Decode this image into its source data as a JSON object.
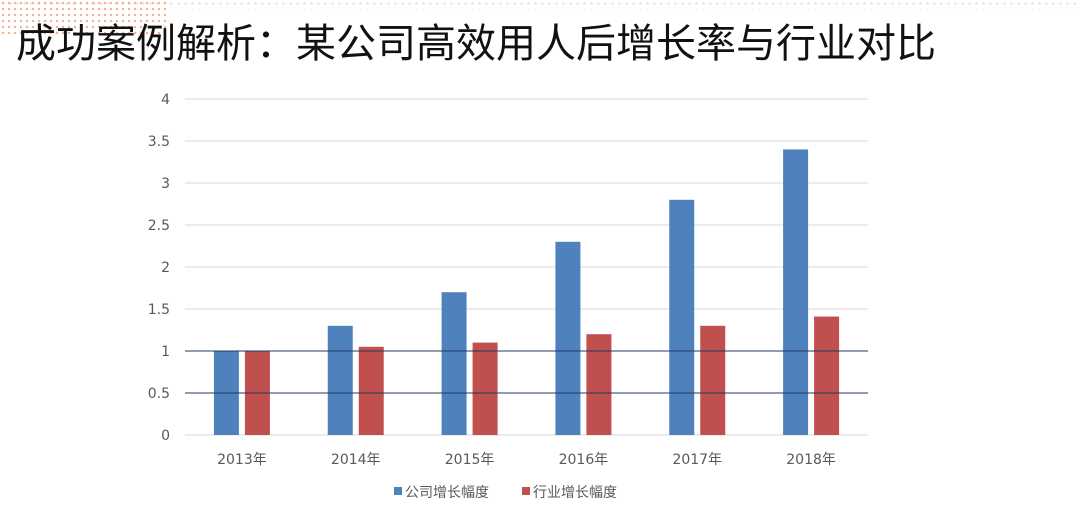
{
  "title": "成功案例解析：某公司高效用人后增长率与行业对比",
  "chart_data": {
    "type": "bar",
    "title": "",
    "xlabel": "",
    "ylabel": "",
    "categories": [
      "2013年",
      "2014年",
      "2015年",
      "2016年",
      "2017年",
      "2018年"
    ],
    "series": [
      {
        "name": "公司增长幅度",
        "color": "#4f81bd",
        "values": [
          1.0,
          1.3,
          1.7,
          2.3,
          2.8,
          3.4
        ]
      },
      {
        "name": "行业增长幅度",
        "color": "#c0504d",
        "values": [
          1.0,
          1.05,
          1.1,
          1.2,
          1.3,
          1.41
        ]
      }
    ],
    "ylim": [
      0,
      4
    ],
    "yticks": [
      "0",
      "0.5",
      "1",
      "1.5",
      "2",
      "2.5",
      "3",
      "3.5",
      "4"
    ],
    "grid": true,
    "legend": "bottom"
  }
}
